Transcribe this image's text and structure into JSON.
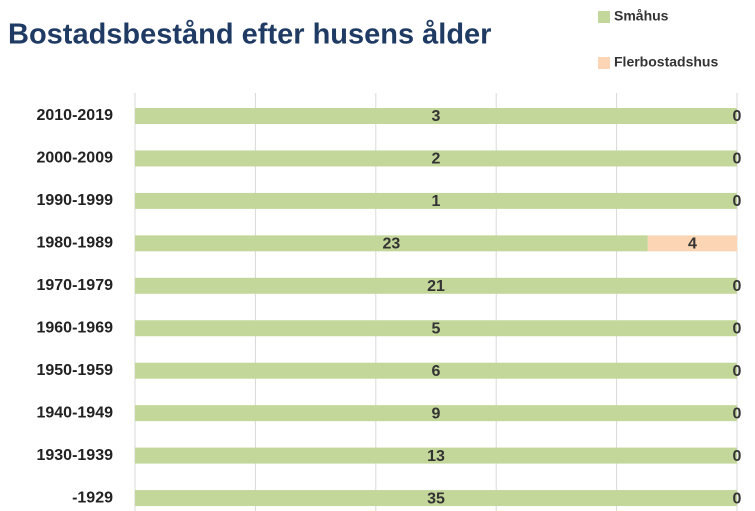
{
  "chart_data": {
    "type": "bar",
    "orientation": "horizontal",
    "stack": "percent",
    "title": "Bostadsbestånd efter husens ålder",
    "categories": [
      "2010-2019",
      "2000-2009",
      "1990-1999",
      "1980-1989",
      "1970-1979",
      "1960-1969",
      "1950-1959",
      "1940-1949",
      "1930-1939",
      "-1929"
    ],
    "series": [
      {
        "name": "Småhus",
        "color": "#c4d79b",
        "values": [
          3,
          2,
          1,
          23,
          21,
          5,
          6,
          9,
          13,
          35
        ]
      },
      {
        "name": "Flerbostadshus",
        "color": "#fcd5b4",
        "values": [
          0,
          0,
          0,
          4,
          0,
          0,
          0,
          0,
          0,
          0
        ]
      }
    ],
    "xlim": [
      0,
      100
    ],
    "xticks": [
      0,
      20,
      40,
      60,
      80,
      100
    ],
    "grid": true
  }
}
